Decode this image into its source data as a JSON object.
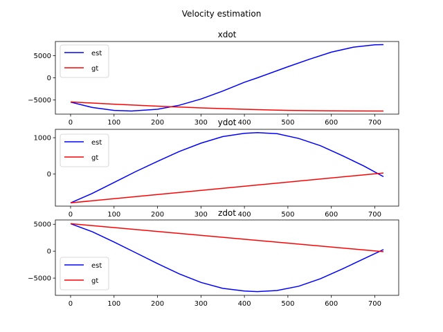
{
  "figure": {
    "title": "Velocity estimation"
  },
  "chart_data": [
    {
      "type": "line",
      "title": "xdot",
      "xlabel": "",
      "ylabel": "",
      "xlim": [
        -35,
        755
      ],
      "ylim": [
        -8200,
        8200
      ],
      "xticks": [
        0,
        100,
        200,
        300,
        400,
        500,
        600,
        700
      ],
      "yticks": [
        -5000,
        0,
        5000
      ],
      "grid": false,
      "legend": "upper-left",
      "series": [
        {
          "name": "est",
          "color": "#0000ff",
          "x": [
            0,
            50,
            100,
            140,
            200,
            250,
            300,
            350,
            400,
            430,
            500,
            550,
            600,
            650,
            700,
            720
          ],
          "y": [
            -5500,
            -6700,
            -7350,
            -7500,
            -7100,
            -6200,
            -4800,
            -3000,
            -1000,
            0,
            2500,
            4200,
            5800,
            6900,
            7450,
            7500
          ]
        },
        {
          "name": "gt",
          "color": "#ff0000",
          "x": [
            0,
            100,
            200,
            300,
            400,
            500,
            600,
            720
          ],
          "y": [
            -5450,
            -5950,
            -6400,
            -6800,
            -7100,
            -7350,
            -7470,
            -7500
          ]
        }
      ]
    },
    {
      "type": "line",
      "title": "ydot",
      "xlabel": "",
      "ylabel": "",
      "xlim": [
        -35,
        755
      ],
      "ylim": [
        -880,
        1230
      ],
      "xticks": [
        0,
        100,
        200,
        300,
        400,
        500,
        600,
        700
      ],
      "yticks": [
        0,
        1000
      ],
      "grid": false,
      "legend": "upper-left",
      "series": [
        {
          "name": "est",
          "color": "#0000ff",
          "x": [
            0,
            50,
            100,
            150,
            200,
            250,
            300,
            350,
            400,
            430,
            475,
            525,
            575,
            625,
            675,
            720
          ],
          "y": [
            -790,
            -530,
            -230,
            70,
            350,
            620,
            850,
            1030,
            1120,
            1140,
            1110,
            980,
            780,
            510,
            220,
            -70
          ]
        },
        {
          "name": "gt",
          "color": "#ff0000",
          "x": [
            0,
            720
          ],
          "y": [
            -790,
            30
          ]
        }
      ]
    },
    {
      "type": "line",
      "title": "zdot",
      "xlabel": "",
      "ylabel": "",
      "xlim": [
        -35,
        755
      ],
      "ylim": [
        -8200,
        5800
      ],
      "xticks": [
        0,
        100,
        200,
        300,
        400,
        500,
        600,
        700
      ],
      "yticks": [
        -5000,
        0,
        5000
      ],
      "grid": false,
      "legend": "lower-left",
      "series": [
        {
          "name": "est",
          "color": "#0000ff",
          "x": [
            0,
            50,
            100,
            150,
            200,
            250,
            300,
            350,
            400,
            430,
            475,
            525,
            575,
            625,
            675,
            720
          ],
          "y": [
            5100,
            3600,
            1700,
            -300,
            -2300,
            -4200,
            -5800,
            -6900,
            -7400,
            -7500,
            -7300,
            -6500,
            -5100,
            -3300,
            -1400,
            300
          ]
        },
        {
          "name": "gt",
          "color": "#ff0000",
          "x": [
            0,
            720
          ],
          "y": [
            5100,
            -100
          ]
        }
      ]
    }
  ]
}
